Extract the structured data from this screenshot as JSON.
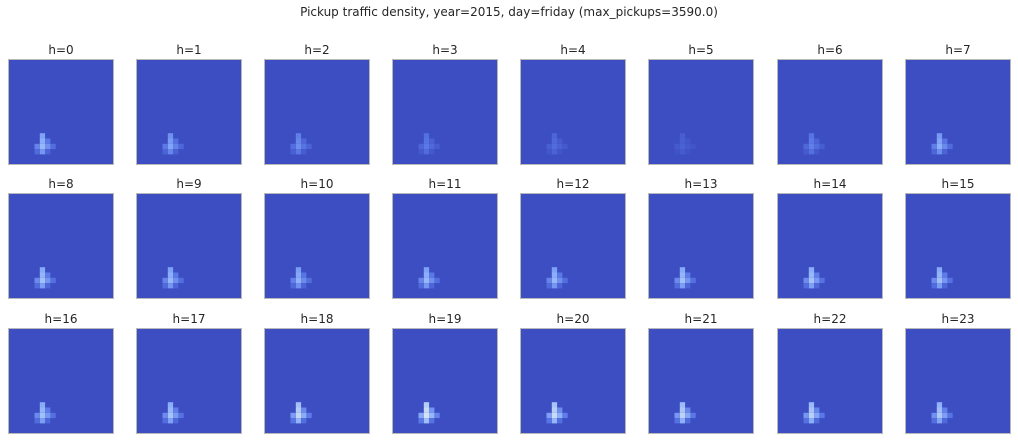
{
  "figure": {
    "title": "Pickup traffic density, year=2015, day=friday (max_pickups=3590.0)"
  },
  "chart_data": {
    "type": "heatmap",
    "title": "Pickup traffic density, year=2015, day=friday (max_pickups=3590.0)",
    "grid_size": [
      20,
      20
    ],
    "cell_value_scale": "fraction of max_pickups",
    "max_pickups": 3590.0,
    "panel_titles": [
      "h=0",
      "h=1",
      "h=2",
      "h=3",
      "h=4",
      "h=5",
      "h=6",
      "h=7",
      "h=8",
      "h=9",
      "h=10",
      "h=11",
      "h=12",
      "h=13",
      "h=14",
      "h=15",
      "h=16",
      "h=17",
      "h=18",
      "h=19",
      "h=20",
      "h=21",
      "h=22",
      "h=23"
    ],
    "intensity": [
      0.55,
      0.45,
      0.35,
      0.25,
      0.18,
      0.12,
      0.28,
      0.5,
      0.6,
      0.55,
      0.52,
      0.55,
      0.55,
      0.6,
      0.62,
      0.6,
      0.6,
      0.62,
      0.75,
      0.85,
      0.78,
      0.72,
      0.7,
      0.65
    ],
    "hotspot_cells": [
      {
        "col": 6,
        "row": 14,
        "v": 0.8
      },
      {
        "col": 6,
        "row": 15,
        "v": 0.9
      },
      {
        "col": 6,
        "row": 16,
        "v": 1.0
      },
      {
        "col": 5,
        "row": 16,
        "v": 0.55
      },
      {
        "col": 7,
        "row": 15,
        "v": 0.45
      },
      {
        "col": 7,
        "row": 16,
        "v": 0.65
      },
      {
        "col": 8,
        "row": 16,
        "v": 0.35
      },
      {
        "col": 6,
        "row": 17,
        "v": 0.7
      },
      {
        "col": 5,
        "row": 17,
        "v": 0.3
      },
      {
        "col": 7,
        "row": 17,
        "v": 0.25
      }
    ],
    "colormap": "coolwarm",
    "background_color": "#3c4ec2",
    "frame_color": "#b8b8b8",
    "axes_ticks": false
  }
}
